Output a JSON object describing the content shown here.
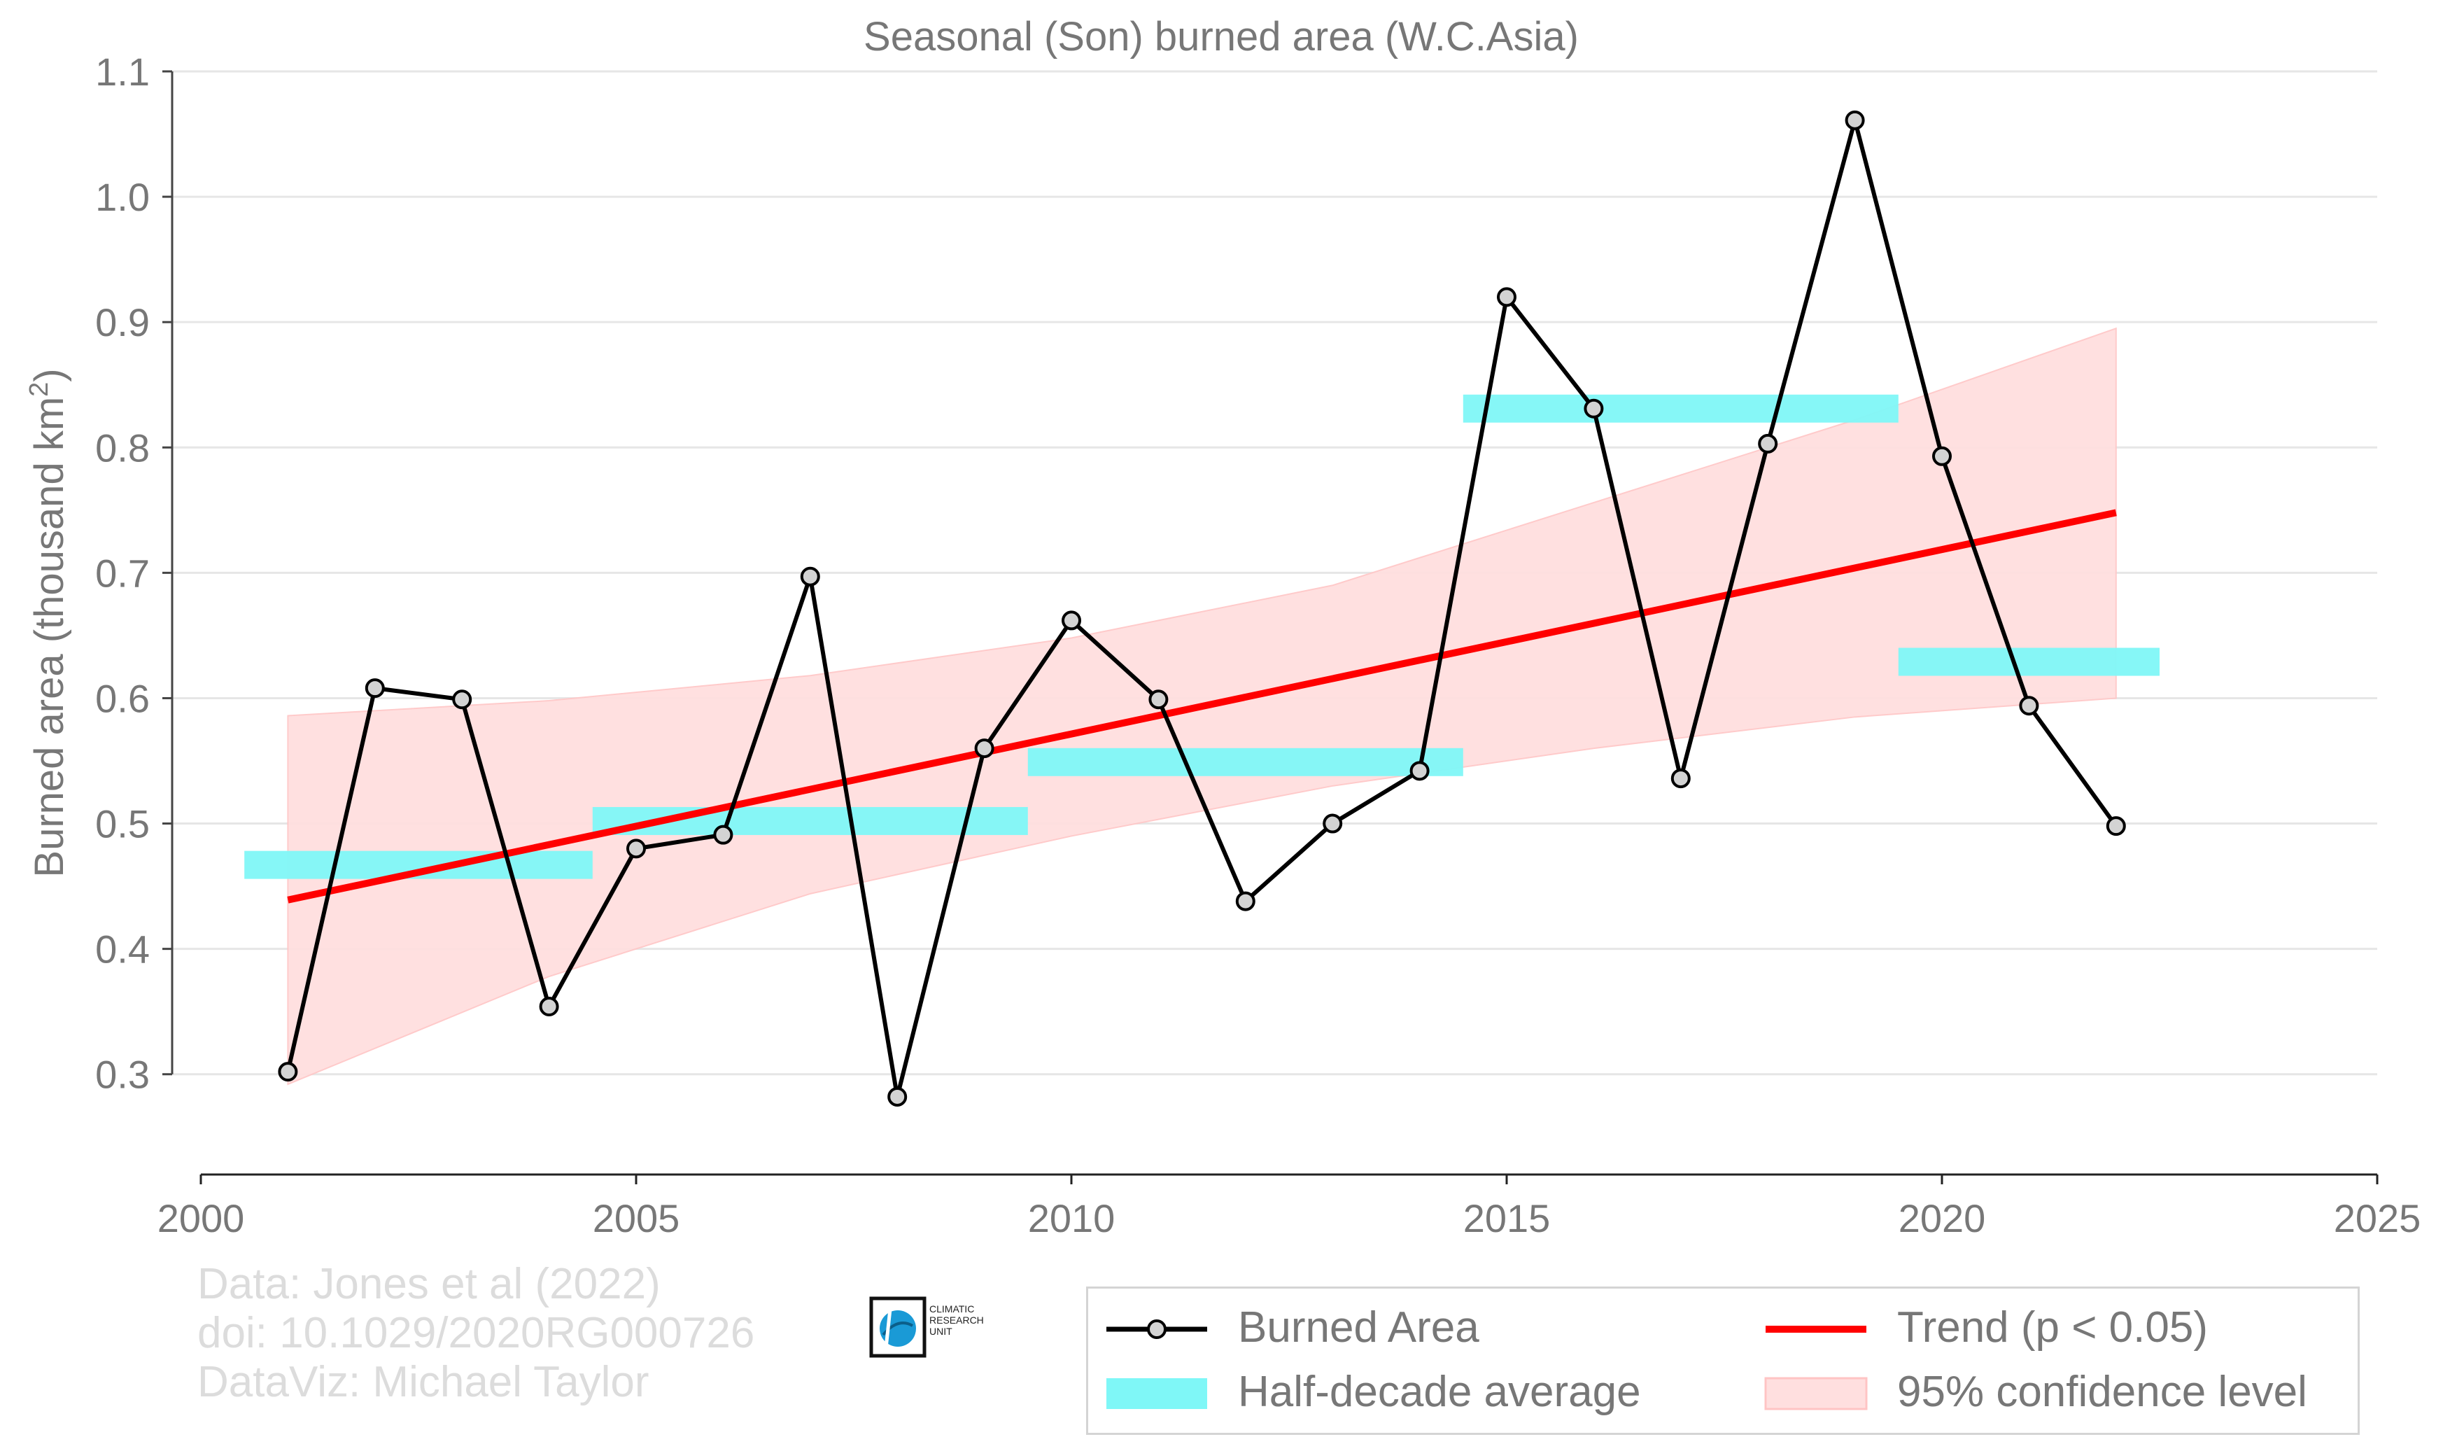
{
  "chart_data": {
    "type": "line",
    "title": "Seasonal (Son) burned area (W.C.Asia)",
    "ylabel": "Burned area (thousand km",
    "ylabel_sup": "2",
    "ylabel_end": ")",
    "xlim": [
      2000,
      2025
    ],
    "ylim": [
      0.22,
      1.1
    ],
    "xticks": [
      2000,
      2005,
      2010,
      2015,
      2020,
      2025
    ],
    "yticks": [
      "0.3",
      "0.4",
      "0.5",
      "0.6",
      "0.7",
      "0.8",
      "0.9",
      "1.0",
      "1.1"
    ],
    "grid": "horizontal",
    "series": [
      {
        "name": "Burned Area",
        "color": "#000000",
        "marker_fill": "#d3d3d3",
        "x": [
          2001,
          2002,
          2003,
          2004,
          2005,
          2006,
          2007,
          2008,
          2009,
          2010,
          2011,
          2012,
          2013,
          2014,
          2015,
          2016,
          2017,
          2018,
          2019,
          2020,
          2021,
          2022
        ],
        "y": [
          0.302,
          0.608,
          0.599,
          0.354,
          0.48,
          0.491,
          0.697,
          0.282,
          0.56,
          0.662,
          0.599,
          0.438,
          0.5,
          0.542,
          0.92,
          0.831,
          0.536,
          0.803,
          1.061,
          0.793,
          0.594,
          0.498
        ]
      }
    ],
    "trend": {
      "name": "Trend (p < 0.05)",
      "color": "#ff0000",
      "x": [
        2001,
        2022
      ],
      "y": [
        0.439,
        0.748
      ]
    },
    "confidence": {
      "name": "95% confidence level",
      "color": "#ffdfdf",
      "x": [
        2001,
        2004,
        2007,
        2010,
        2013,
        2016,
        2019,
        2022
      ],
      "upper": [
        0.586,
        0.598,
        0.618,
        0.648,
        0.69,
        0.756,
        0.822,
        0.895
      ],
      "lower": [
        0.292,
        0.378,
        0.444,
        0.49,
        0.53,
        0.56,
        0.585,
        0.6
      ]
    },
    "half_decade": {
      "name": "Half-decade average",
      "color": "#7ff7f7",
      "bars": [
        {
          "x0": 2000.5,
          "x1": 2004.5,
          "y": 0.467
        },
        {
          "x0": 2004.5,
          "x1": 2009.5,
          "y": 0.502
        },
        {
          "x0": 2009.5,
          "x1": 2014.5,
          "y": 0.549
        },
        {
          "x0": 2014.5,
          "x1": 2019.5,
          "y": 0.831
        },
        {
          "x0": 2019.5,
          "x1": 2022.5,
          "y": 0.629
        }
      ]
    },
    "legend": {
      "placement": "bottom-right",
      "items": [
        "Burned Area",
        "Trend (p < 0.05)",
        "Half-decade average",
        "95% confidence level"
      ]
    }
  },
  "credits": {
    "line1": "Data: Jones et al (2022)",
    "line2": "doi: 10.1029/2020RG000726",
    "line3": "DataViz: Michael Taylor"
  },
  "logo": {
    "line1": "CLIMATIC",
    "line2": "RESEARCH",
    "line3": "UNIT"
  }
}
